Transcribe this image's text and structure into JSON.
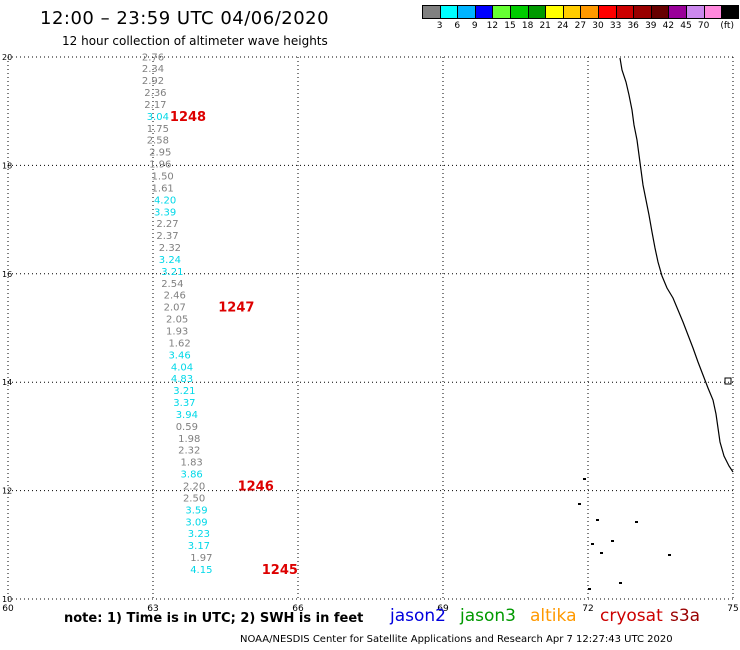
{
  "header": {
    "title": "12:00 – 23:59 UTC 04/06/2020",
    "subtitle": "12 hour collection of altimeter wave heights"
  },
  "color_scale": {
    "colors": [
      "#808080",
      "#00ffff",
      "#00b4ff",
      "#0000ff",
      "#66ff33",
      "#00cc00",
      "#009900",
      "#ffff00",
      "#ffcc00",
      "#ff9900",
      "#ff0000",
      "#cc0000",
      "#990000",
      "#660000",
      "#990099",
      "#cc88ee",
      "#ff88dd",
      "#000000"
    ],
    "labels": [
      "3",
      "6",
      "9",
      "12",
      "15",
      "18",
      "21",
      "24",
      "27",
      "30",
      "33",
      "36",
      "39",
      "42",
      "45",
      "70"
    ],
    "unit": "(ft)"
  },
  "map": {
    "lon_ticks": [
      60,
      63,
      66,
      69,
      72,
      75
    ],
    "lat_ticks": [
      10,
      12,
      14,
      16,
      18,
      20
    ],
    "lon_range": [
      60,
      75
    ],
    "lat_range": [
      10,
      20
    ],
    "grid": "dotted"
  },
  "track": {
    "points": [
      {
        "lon": 63.0,
        "lat": 19.94,
        "swh": "2.76",
        "c": "#808080"
      },
      {
        "lon": 63.0,
        "lat": 19.72,
        "swh": "2.34",
        "c": "#808080"
      },
      {
        "lon": 63.0,
        "lat": 19.5,
        "swh": "2.92",
        "c": "#808080"
      },
      {
        "lon": 63.05,
        "lat": 19.28,
        "swh": "2.36",
        "c": "#808080"
      },
      {
        "lon": 63.05,
        "lat": 19.06,
        "swh": "2.17",
        "c": "#808080"
      },
      {
        "lon": 63.1,
        "lat": 18.84,
        "swh": "3.04",
        "c": "#00d8e8"
      },
      {
        "lon": 63.1,
        "lat": 18.62,
        "swh": "1.75",
        "c": "#808080"
      },
      {
        "lon": 63.1,
        "lat": 18.4,
        "swh": "2.58",
        "c": "#808080"
      },
      {
        "lon": 63.15,
        "lat": 18.18,
        "swh": "2.95",
        "c": "#808080"
      },
      {
        "lon": 63.15,
        "lat": 17.96,
        "swh": "1.96",
        "c": "#808080"
      },
      {
        "lon": 63.2,
        "lat": 17.74,
        "swh": "1.50",
        "c": "#808080"
      },
      {
        "lon": 63.2,
        "lat": 17.52,
        "swh": "1.61",
        "c": "#808080"
      },
      {
        "lon": 63.25,
        "lat": 17.3,
        "swh": "4.20",
        "c": "#00d8e8"
      },
      {
        "lon": 63.25,
        "lat": 17.08,
        "swh": "3.39",
        "c": "#00d8e8"
      },
      {
        "lon": 63.3,
        "lat": 16.86,
        "swh": "2.27",
        "c": "#808080"
      },
      {
        "lon": 63.3,
        "lat": 16.64,
        "swh": "2.37",
        "c": "#808080"
      },
      {
        "lon": 63.35,
        "lat": 16.42,
        "swh": "2.32",
        "c": "#808080"
      },
      {
        "lon": 63.35,
        "lat": 16.2,
        "swh": "3.24",
        "c": "#00d8e8"
      },
      {
        "lon": 63.4,
        "lat": 15.98,
        "swh": "3.21",
        "c": "#00d8e8"
      },
      {
        "lon": 63.4,
        "lat": 15.76,
        "swh": "2.54",
        "c": "#808080"
      },
      {
        "lon": 63.45,
        "lat": 15.54,
        "swh": "2.46",
        "c": "#808080"
      },
      {
        "lon": 63.45,
        "lat": 15.32,
        "swh": "2.07",
        "c": "#808080"
      },
      {
        "lon": 63.5,
        "lat": 15.1,
        "swh": "2.05",
        "c": "#808080"
      },
      {
        "lon": 63.5,
        "lat": 14.88,
        "swh": "1.93",
        "c": "#808080"
      },
      {
        "lon": 63.55,
        "lat": 14.66,
        "swh": "1.62",
        "c": "#808080"
      },
      {
        "lon": 63.55,
        "lat": 14.44,
        "swh": "3.46",
        "c": "#00d8e8"
      },
      {
        "lon": 63.6,
        "lat": 14.22,
        "swh": "4.04",
        "c": "#00d8e8"
      },
      {
        "lon": 63.6,
        "lat": 14.0,
        "swh": "4.83",
        "c": "#00d8e8"
      },
      {
        "lon": 63.65,
        "lat": 13.78,
        "swh": "3.21",
        "c": "#00d8e8"
      },
      {
        "lon": 63.65,
        "lat": 13.56,
        "swh": "3.37",
        "c": "#00d8e8"
      },
      {
        "lon": 63.7,
        "lat": 13.34,
        "swh": "3.94",
        "c": "#00d8e8"
      },
      {
        "lon": 63.7,
        "lat": 13.12,
        "swh": "0.59",
        "c": "#808080"
      },
      {
        "lon": 63.75,
        "lat": 12.9,
        "swh": "1.98",
        "c": "#808080"
      },
      {
        "lon": 63.75,
        "lat": 12.68,
        "swh": "2.32",
        "c": "#808080"
      },
      {
        "lon": 63.8,
        "lat": 12.46,
        "swh": "1.83",
        "c": "#808080"
      },
      {
        "lon": 63.8,
        "lat": 12.24,
        "swh": "3.86",
        "c": "#00d8e8"
      },
      {
        "lon": 63.85,
        "lat": 12.02,
        "swh": "2.20",
        "c": "#808080"
      },
      {
        "lon": 63.85,
        "lat": 11.8,
        "swh": "2.50",
        "c": "#808080"
      },
      {
        "lon": 63.9,
        "lat": 11.58,
        "swh": "3.59",
        "c": "#00d8e8"
      },
      {
        "lon": 63.9,
        "lat": 11.36,
        "swh": "3.09",
        "c": "#00d8e8"
      },
      {
        "lon": 63.95,
        "lat": 11.14,
        "swh": "3.23",
        "c": "#00d8e8"
      },
      {
        "lon": 63.95,
        "lat": 10.92,
        "swh": "3.17",
        "c": "#00d8e8"
      },
      {
        "lon": 64.0,
        "lat": 10.7,
        "swh": "1.97",
        "c": "#808080"
      },
      {
        "lon": 64.0,
        "lat": 10.48,
        "swh": "4.15",
        "c": "#00d8e8"
      }
    ],
    "time_labels": [
      {
        "lon": 63.35,
        "lat": 18.84,
        "text": "1248"
      },
      {
        "lon": 64.35,
        "lat": 15.32,
        "text": "1247"
      },
      {
        "lon": 64.75,
        "lat": 12.02,
        "text": "1246"
      },
      {
        "lon": 65.25,
        "lat": 10.48,
        "text": "1245"
      }
    ]
  },
  "footer": {
    "note": "note:  1) Time is in UTC;  2) SWH is in feet",
    "satellites": [
      {
        "name": "jason2",
        "color": "#0000dd"
      },
      {
        "name": "jason3",
        "color": "#009900"
      },
      {
        "name": "altika",
        "color": "#ff9900"
      },
      {
        "name": "cryosat",
        "color": "#cc0000"
      },
      {
        "name": "s3a",
        "color": "#990000"
      }
    ],
    "credit": "NOAA/NESDIS Center for Satellite Applications and Research    Apr  7 12:27:43 UTC 2020"
  }
}
